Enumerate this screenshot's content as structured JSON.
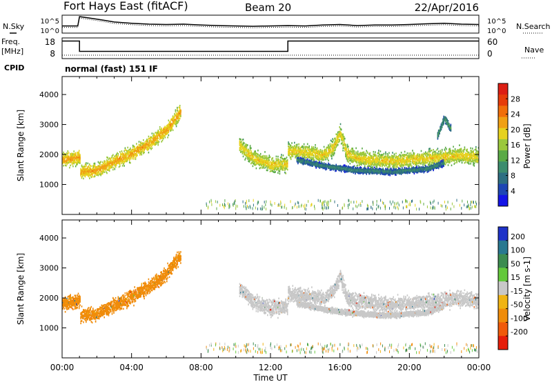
{
  "header": {
    "station": "Fort Hays East (fitACF)",
    "beam": "Beam 20",
    "date": "22/Apr/2016"
  },
  "side_labels": {
    "nsky": "N.Sky",
    "freq_line1": "Freq.",
    "freq_line2": "[MHz]",
    "cpid": "CPID",
    "nsearch": "N.Search",
    "nave": "Nave"
  },
  "cpid_text": "normal (fast) 151 IF",
  "chart_data": [
    {
      "type": "line",
      "panel": "noise",
      "left_axis": {
        "label": "N.Sky",
        "ticks": [
          "10^5",
          "10^0"
        ]
      },
      "right_axis": {
        "label": "N.Search",
        "ticks": [
          "10^5",
          "10^0"
        ]
      },
      "x_range": [
        0,
        24
      ],
      "x": [
        0.0,
        0.9,
        1.0,
        1.5,
        2.0,
        2.5,
        3.0,
        4.0,
        5.0,
        6.0,
        7.0,
        8.0,
        9.0,
        10.0,
        11.0,
        12.0,
        13.0,
        14.0,
        15.0,
        16.0,
        17.0,
        18.0,
        19.0,
        20.0,
        21.0,
        22.0,
        23.0,
        24.0
      ],
      "y_level": [
        0.4,
        0.4,
        0.92,
        0.85,
        0.78,
        0.7,
        0.62,
        0.55,
        0.5,
        0.48,
        0.5,
        0.45,
        0.42,
        0.4,
        0.38,
        0.4,
        0.42,
        0.4,
        0.45,
        0.48,
        0.42,
        0.45,
        0.45,
        0.48,
        0.52,
        0.55,
        0.5,
        0.48
      ]
    },
    {
      "type": "line",
      "panel": "frequency",
      "left_axis": {
        "label": "Freq. [MHz]",
        "ticks": [
          18,
          8
        ],
        "range": [
          8,
          18
        ]
      },
      "right_axis": {
        "label": "Nave",
        "ticks": [
          60,
          0
        ],
        "range": [
          0,
          60
        ]
      },
      "x_range": [
        0,
        24
      ],
      "freq_steps": [
        {
          "from": 0.0,
          "to": 1.0,
          "mhz": 16.5
        },
        {
          "from": 1.0,
          "to": 13.0,
          "mhz": 11.5
        },
        {
          "from": 13.0,
          "to": 24.0,
          "mhz": 16.5
        }
      ],
      "nave_level": 10
    },
    {
      "type": "heatmap",
      "panel": "power",
      "title": "",
      "ylabel": "Slant Range [km]",
      "xlabel": "Time UT",
      "ylim": [
        0,
        4600
      ],
      "y_ticks": [
        1000,
        2000,
        3000,
        4000
      ],
      "x_ticks": [
        "00:00",
        "04:00",
        "08:00",
        "12:00",
        "16:00",
        "20:00",
        "00:00"
      ],
      "colorbar": {
        "label": "Power [dB]",
        "range": [
          0,
          32
        ],
        "ticks": [
          4,
          8,
          12,
          16,
          20,
          24,
          28
        ],
        "colors": [
          "#1414e6",
          "#1e46b4",
          "#2d6e82",
          "#3c8c6e",
          "#5aaa46",
          "#9bc83c",
          "#e6d21e",
          "#f0a014",
          "#f06e0a",
          "#e63c0a",
          "#dc1e14"
        ]
      },
      "bands": [
        {
          "t": [
            0.0,
            1.0,
            1.05,
            2.0,
            3.0,
            4.0,
            5.0,
            6.0,
            6.8
          ],
          "r": [
            1800,
            1900,
            1400,
            1450,
            1750,
            2000,
            2350,
            2800,
            3400
          ],
          "width": 550,
          "power": 22
        },
        {
          "t": [
            10.2,
            11.0,
            12.0,
            12.95,
            13.0,
            14.0,
            15.0,
            15.6,
            16.0,
            16.4,
            17.0,
            18.0,
            19.0,
            20.0,
            21.0,
            22.0,
            23.0,
            24.0
          ],
          "r": [
            2300,
            1850,
            1650,
            1650,
            2100,
            2050,
            1950,
            2200,
            2700,
            2000,
            1850,
            1800,
            1750,
            1800,
            1850,
            1900,
            1950,
            1900
          ],
          "width": 600,
          "power": 20
        },
        {
          "t": [
            13.5,
            15.0,
            17.0,
            19.0,
            21.0,
            22.0
          ],
          "r": [
            1800,
            1600,
            1450,
            1400,
            1500,
            1700
          ],
          "width": 220,
          "power": 10
        },
        {
          "t": [
            21.6,
            22.0,
            22.4
          ],
          "r": [
            2600,
            3200,
            2800
          ],
          "width": 250,
          "power": 12
        }
      ]
    },
    {
      "type": "heatmap",
      "panel": "velocity",
      "title": "",
      "ylabel": "Slant Range [km]",
      "xlabel": "Time UT",
      "ylim": [
        0,
        4600
      ],
      "y_ticks": [
        1000,
        2000,
        3000,
        4000
      ],
      "x_ticks": [
        "00:00",
        "04:00",
        "08:00",
        "12:00",
        "16:00",
        "20:00",
        "00:00"
      ],
      "colorbar": {
        "label": "Velocity [m s-1]",
        "ticks": [
          "200",
          "100",
          "50",
          "15",
          "-15",
          "-50",
          "-100",
          "-200"
        ],
        "colors": [
          "#1e32c8",
          "#287890",
          "#3c8c50",
          "#64c83c",
          "#c8c8c8",
          "#f0b414",
          "#f08c0a",
          "#f05a0a",
          "#e61e0a"
        ]
      },
      "bands": [
        {
          "t": [
            0.0,
            1.0,
            1.05,
            2.0,
            3.0,
            4.0,
            5.0,
            6.0,
            6.8
          ],
          "r": [
            1800,
            1900,
            1400,
            1450,
            1750,
            2000,
            2350,
            2800,
            3400
          ],
          "width": 550,
          "velocity": -40
        },
        {
          "t": [
            10.2,
            11.0,
            12.0,
            12.95,
            13.0,
            14.0,
            15.0,
            15.6,
            16.0,
            16.4,
            17.0,
            18.0,
            19.0,
            20.0,
            21.0,
            22.0,
            23.0,
            24.0
          ],
          "r": [
            2300,
            1850,
            1650,
            1650,
            2100,
            2050,
            1950,
            2200,
            2700,
            2000,
            1850,
            1800,
            1750,
            1800,
            1850,
            1900,
            1950,
            1900
          ],
          "width": 600,
          "velocity": 0
        },
        {
          "t": [
            13.5,
            15.0,
            17.0,
            19.0,
            21.0,
            22.0
          ],
          "r": [
            1800,
            1600,
            1450,
            1400,
            1500,
            1700
          ],
          "width": 220,
          "velocity": 0
        }
      ]
    }
  ]
}
